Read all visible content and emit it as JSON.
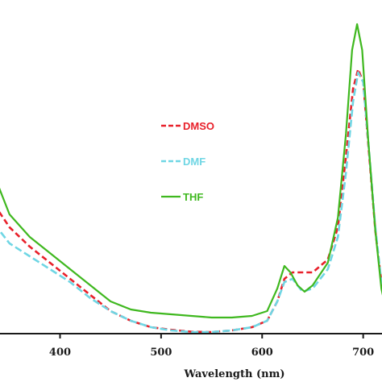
{
  "chart_data": {
    "type": "line",
    "title": "",
    "xlabel": "Wavelength (nm)",
    "ylabel": "",
    "xlim": [
      335,
      725
    ],
    "ylim": [
      0,
      1.0
    ],
    "x_ticks": [
      400,
      500,
      600,
      700
    ],
    "x_tick_labels": [
      "400",
      "500",
      "600",
      "700"
    ],
    "grid": false,
    "legend_position": "center",
    "series": [
      {
        "name": "DMSO",
        "color": "#e8202a",
        "dash": "dashed",
        "points": [
          [
            335,
            0.4
          ],
          [
            350,
            0.33
          ],
          [
            370,
            0.27
          ],
          [
            390,
            0.22
          ],
          [
            410,
            0.17
          ],
          [
            430,
            0.12
          ],
          [
            450,
            0.07
          ],
          [
            470,
            0.04
          ],
          [
            490,
            0.02
          ],
          [
            510,
            0.012
          ],
          [
            530,
            0.006
          ],
          [
            550,
            0.005
          ],
          [
            570,
            0.01
          ],
          [
            590,
            0.02
          ],
          [
            605,
            0.04
          ],
          [
            615,
            0.1
          ],
          [
            622,
            0.17
          ],
          [
            630,
            0.19
          ],
          [
            650,
            0.19
          ],
          [
            665,
            0.23
          ],
          [
            675,
            0.33
          ],
          [
            683,
            0.55
          ],
          [
            690,
            0.76
          ],
          [
            695,
            0.82
          ],
          [
            700,
            0.78
          ],
          [
            706,
            0.55
          ],
          [
            712,
            0.32
          ],
          [
            718,
            0.16
          ],
          [
            725,
            0.07
          ]
        ]
      },
      {
        "name": "DMF",
        "color": "#6fd6e4",
        "dash": "dashed",
        "points": [
          [
            335,
            0.34
          ],
          [
            350,
            0.28
          ],
          [
            370,
            0.24
          ],
          [
            390,
            0.2
          ],
          [
            410,
            0.16
          ],
          [
            430,
            0.11
          ],
          [
            450,
            0.07
          ],
          [
            470,
            0.04
          ],
          [
            490,
            0.02
          ],
          [
            510,
            0.01
          ],
          [
            530,
            0.005
          ],
          [
            550,
            0.005
          ],
          [
            570,
            0.01
          ],
          [
            590,
            0.02
          ],
          [
            605,
            0.04
          ],
          [
            615,
            0.1
          ],
          [
            622,
            0.16
          ],
          [
            630,
            0.17
          ],
          [
            640,
            0.13
          ],
          [
            650,
            0.14
          ],
          [
            665,
            0.2
          ],
          [
            675,
            0.3
          ],
          [
            683,
            0.5
          ],
          [
            690,
            0.72
          ],
          [
            695,
            0.81
          ],
          [
            700,
            0.78
          ],
          [
            706,
            0.56
          ],
          [
            712,
            0.33
          ],
          [
            718,
            0.16
          ],
          [
            725,
            0.06
          ]
        ]
      },
      {
        "name": "THF",
        "color": "#3fb81f",
        "dash": "solid",
        "points": [
          [
            335,
            0.49
          ],
          [
            350,
            0.37
          ],
          [
            370,
            0.3
          ],
          [
            390,
            0.25
          ],
          [
            410,
            0.2
          ],
          [
            430,
            0.15
          ],
          [
            450,
            0.1
          ],
          [
            470,
            0.075
          ],
          [
            490,
            0.065
          ],
          [
            510,
            0.06
          ],
          [
            530,
            0.055
          ],
          [
            550,
            0.05
          ],
          [
            570,
            0.05
          ],
          [
            590,
            0.055
          ],
          [
            605,
            0.07
          ],
          [
            615,
            0.14
          ],
          [
            622,
            0.21
          ],
          [
            628,
            0.19
          ],
          [
            635,
            0.15
          ],
          [
            642,
            0.13
          ],
          [
            650,
            0.15
          ],
          [
            665,
            0.22
          ],
          [
            675,
            0.36
          ],
          [
            683,
            0.62
          ],
          [
            689,
            0.88
          ],
          [
            694,
            0.96
          ],
          [
            699,
            0.88
          ],
          [
            705,
            0.6
          ],
          [
            712,
            0.32
          ],
          [
            718,
            0.14
          ],
          [
            725,
            0.04
          ]
        ]
      }
    ]
  }
}
